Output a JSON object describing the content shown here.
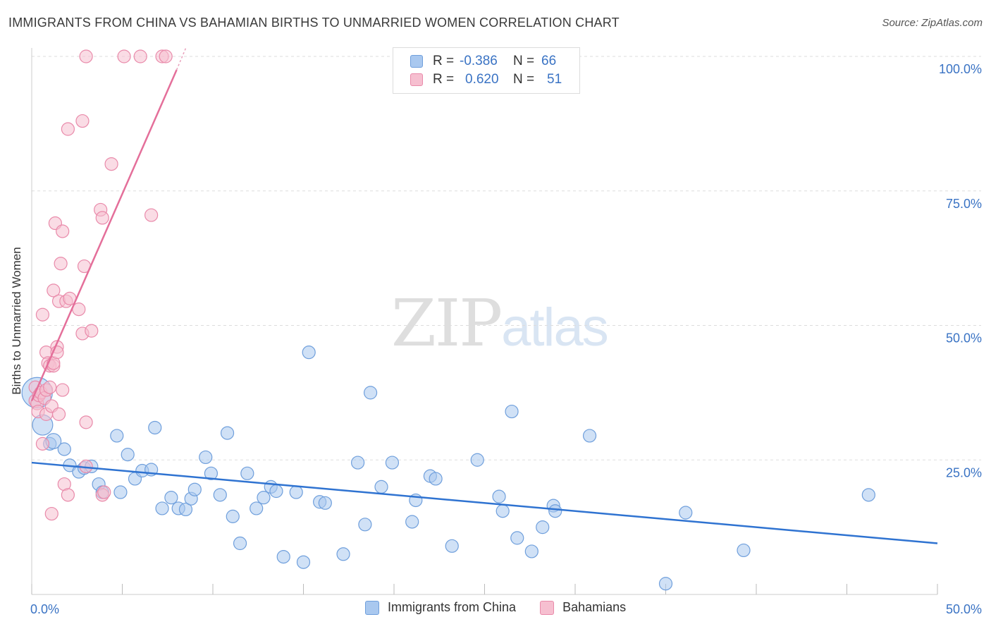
{
  "title": "IMMIGRANTS FROM CHINA VS BAHAMIAN BIRTHS TO UNMARRIED WOMEN CORRELATION CHART",
  "source": "Source: ZipAtlas.com",
  "watermark": {
    "zip": "ZIP",
    "atlas": "atlas"
  },
  "legend": {
    "rows": [
      {
        "r_label": "R =",
        "r_value": "-0.386",
        "n_label": "N =",
        "n_value": "66",
        "color": "#a9c8ef",
        "border": "#6f9fdc"
      },
      {
        "r_label": "R =",
        "r_value": "0.620",
        "n_label": "N =",
        "n_value": "51",
        "color": "#f6bfd0",
        "border": "#e98aaa"
      }
    ]
  },
  "bottom_legend": [
    {
      "label": "Immigrants from China",
      "color": "#a9c8ef",
      "border": "#6f9fdc"
    },
    {
      "label": "Bahamians",
      "color": "#f6bfd0",
      "border": "#e98aaa"
    }
  ],
  "chart_data": {
    "type": "scatter",
    "title": "IMMIGRANTS FROM CHINA VS BAHAMIAN BIRTHS TO UNMARRIED WOMEN CORRELATION CHART",
    "xlabel": "",
    "ylabel": "Births to Unmarried Women",
    "xlim": [
      0,
      50
    ],
    "ylim": [
      0,
      100
    ],
    "x_tick_labels": [
      "0.0%",
      "50.0%"
    ],
    "y_tick_labels": [
      "25.0%",
      "50.0%",
      "75.0%",
      "100.0%"
    ],
    "y_ticks": [
      25,
      50,
      75,
      100
    ],
    "grid": true,
    "legend_placement": "top-center",
    "series": [
      {
        "name": "Immigrants from China",
        "color": "#6f9fdc",
        "fill": "#a9c8ef",
        "r": -0.386,
        "n": 66,
        "trend": [
          [
            0,
            24.5
          ],
          [
            50,
            9.5
          ]
        ],
        "points": [
          [
            0.3,
            37.5
          ],
          [
            0.6,
            31.5
          ],
          [
            1.0,
            28.0
          ],
          [
            1.2,
            28.5
          ],
          [
            1.8,
            27.0
          ],
          [
            2.1,
            24.0
          ],
          [
            2.6,
            22.8
          ],
          [
            2.9,
            23.5
          ],
          [
            3.3,
            23.8
          ],
          [
            3.7,
            20.5
          ],
          [
            3.9,
            19.0
          ],
          [
            4.9,
            19.0
          ],
          [
            4.7,
            29.5
          ],
          [
            5.3,
            26.0
          ],
          [
            5.7,
            21.5
          ],
          [
            6.1,
            23.0
          ],
          [
            6.6,
            23.2
          ],
          [
            6.8,
            31.0
          ],
          [
            7.2,
            16.0
          ],
          [
            7.7,
            18.0
          ],
          [
            8.1,
            16.0
          ],
          [
            8.5,
            15.8
          ],
          [
            8.8,
            17.8
          ],
          [
            9.0,
            19.5
          ],
          [
            9.6,
            25.5
          ],
          [
            9.9,
            22.5
          ],
          [
            10.4,
            18.5
          ],
          [
            10.8,
            30.0
          ],
          [
            11.1,
            14.5
          ],
          [
            11.5,
            9.5
          ],
          [
            11.9,
            22.5
          ],
          [
            12.4,
            16.0
          ],
          [
            12.8,
            18.0
          ],
          [
            13.2,
            20.0
          ],
          [
            13.5,
            19.2
          ],
          [
            13.9,
            7.0
          ],
          [
            14.6,
            19.0
          ],
          [
            15.0,
            6.0
          ],
          [
            15.3,
            45.0
          ],
          [
            15.9,
            17.2
          ],
          [
            16.2,
            17.0
          ],
          [
            17.2,
            7.5
          ],
          [
            18.0,
            24.5
          ],
          [
            18.4,
            13.0
          ],
          [
            18.7,
            37.5
          ],
          [
            19.3,
            20.0
          ],
          [
            19.9,
            24.5
          ],
          [
            21.0,
            13.5
          ],
          [
            21.2,
            17.5
          ],
          [
            22.0,
            22.0
          ],
          [
            22.3,
            21.5
          ],
          [
            23.2,
            9.0
          ],
          [
            24.6,
            25.0
          ],
          [
            25.8,
            18.2
          ],
          [
            26.0,
            15.5
          ],
          [
            26.5,
            34.0
          ],
          [
            26.8,
            10.5
          ],
          [
            27.6,
            8.0
          ],
          [
            28.2,
            12.5
          ],
          [
            28.8,
            16.5
          ],
          [
            28.9,
            15.5
          ],
          [
            30.8,
            29.5
          ],
          [
            35.0,
            2.0
          ],
          [
            36.1,
            15.2
          ],
          [
            39.3,
            8.2
          ],
          [
            46.2,
            18.5
          ]
        ],
        "point_sizes": {
          "0": 2.4,
          "1": 1.6,
          "3": 1.2
        }
      },
      {
        "name": "Bahamians",
        "color": "#e98aaa",
        "fill": "#f6bfd0",
        "r": 0.62,
        "n": 51,
        "trend": [
          [
            0,
            36.0
          ],
          [
            8.0,
            97.5
          ]
        ],
        "trend_dashed": [
          [
            8.0,
            97.5
          ],
          [
            8.5,
            101.5
          ]
        ],
        "points": [
          [
            0.2,
            36.0
          ],
          [
            0.2,
            38.5
          ],
          [
            0.3,
            35.5
          ],
          [
            0.35,
            34.0
          ],
          [
            0.4,
            37.0
          ],
          [
            0.5,
            37.5
          ],
          [
            0.6,
            52.0
          ],
          [
            0.6,
            28.0
          ],
          [
            0.7,
            36.5
          ],
          [
            0.8,
            33.5
          ],
          [
            0.8,
            38.0
          ],
          [
            0.8,
            45.0
          ],
          [
            0.9,
            43.0
          ],
          [
            1.0,
            38.5
          ],
          [
            1.0,
            42.5
          ],
          [
            1.1,
            35.0
          ],
          [
            1.1,
            15.0
          ],
          [
            1.2,
            42.5
          ],
          [
            1.2,
            56.5
          ],
          [
            1.2,
            43.0
          ],
          [
            1.3,
            69.0
          ],
          [
            1.4,
            46.0
          ],
          [
            1.4,
            45.0
          ],
          [
            1.5,
            33.5
          ],
          [
            1.5,
            54.5
          ],
          [
            1.6,
            61.5
          ],
          [
            1.7,
            67.5
          ],
          [
            1.7,
            38.0
          ],
          [
            1.8,
            20.5
          ],
          [
            1.9,
            54.5
          ],
          [
            2.0,
            18.5
          ],
          [
            2.1,
            55.0
          ],
          [
            2.0,
            86.5
          ],
          [
            2.6,
            53.0
          ],
          [
            2.8,
            48.5
          ],
          [
            2.8,
            88.0
          ],
          [
            2.9,
            61.0
          ],
          [
            3.0,
            32.0
          ],
          [
            3.0,
            23.8
          ],
          [
            3.3,
            49.0
          ],
          [
            3.8,
            71.5
          ],
          [
            3.9,
            70.0
          ],
          [
            3.9,
            18.5
          ],
          [
            4.4,
            80.0
          ],
          [
            6.0,
            100.0
          ],
          [
            6.6,
            70.5
          ],
          [
            7.2,
            100.0
          ],
          [
            7.4,
            100.0
          ],
          [
            3.0,
            100.0
          ],
          [
            5.1,
            100.0
          ],
          [
            4.0,
            19.0
          ]
        ]
      }
    ]
  }
}
